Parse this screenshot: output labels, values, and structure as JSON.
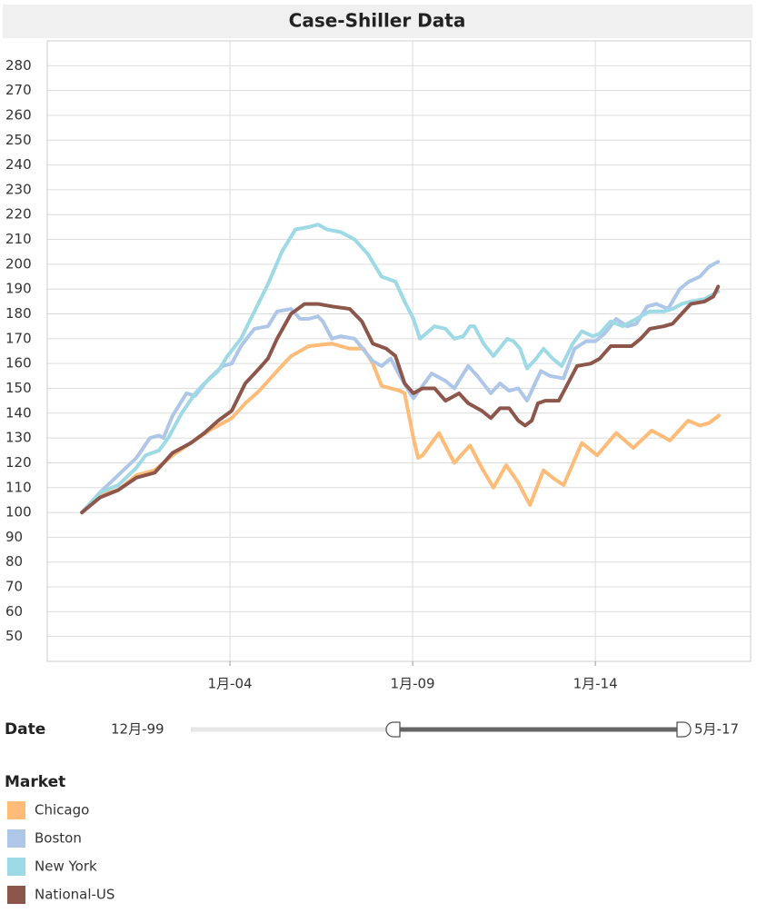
{
  "chart_data": {
    "type": "line",
    "title": "Case-Shiller Data",
    "grid": true,
    "xlim": [
      1999,
      2018.25
    ],
    "xticks": [
      {
        "value": 2004,
        "label": "1月-04"
      },
      {
        "value": 2009,
        "label": "1月-09"
      },
      {
        "value": 2014,
        "label": "1月-14"
      }
    ],
    "ylim": [
      40,
      290
    ],
    "yticks": [
      50,
      60,
      70,
      80,
      90,
      100,
      110,
      120,
      130,
      140,
      150,
      160,
      170,
      180,
      190,
      200,
      210,
      220,
      230,
      240,
      250,
      260,
      270,
      280
    ],
    "filter": {
      "label": "Date",
      "min_label": "12月-99",
      "max_label": "5月-17"
    },
    "legend": "bottom-left",
    "legend_title": "Market",
    "series": [
      {
        "name": "Chicago",
        "color": "#ffbb78",
        "x": [
          1999.95,
          2000.44,
          2000.94,
          2001.44,
          2001.94,
          2002.43,
          2002.93,
          2003.43,
          2004.05,
          2004.42,
          2004.8,
          2005.29,
          2005.67,
          2006.16,
          2006.79,
          2007.28,
          2007.66,
          2007.91,
          2008.15,
          2008.65,
          2008.78,
          2009.02,
          2009.15,
          2009.27,
          2009.72,
          2010.14,
          2010.57,
          2010.89,
          2011.21,
          2011.56,
          2011.89,
          2012.21,
          2012.58,
          2012.83,
          2013.13,
          2013.63,
          2014.05,
          2014.57,
          2015.04,
          2015.54,
          2016.04,
          2016.54,
          2016.86,
          2017.11,
          2017.38
        ],
        "values": [
          100,
          107,
          109,
          115,
          117,
          123,
          128,
          133,
          138,
          144,
          149,
          157,
          163,
          167,
          168,
          166,
          166,
          160,
          151,
          149,
          148,
          130,
          122,
          123,
          132,
          120,
          127,
          118,
          110,
          119,
          112,
          103,
          117,
          114,
          111,
          128,
          123,
          132,
          126,
          133,
          129,
          137,
          135,
          136,
          139
        ]
      },
      {
        "name": "Boston",
        "color": "#aec7e8",
        "x": [
          1999.95,
          2000.44,
          2000.94,
          2001.44,
          2001.81,
          2002.06,
          2002.18,
          2002.43,
          2002.81,
          2003.05,
          2003.43,
          2003.8,
          2004.05,
          2004.3,
          2004.67,
          2005.04,
          2005.29,
          2005.67,
          2005.92,
          2006.16,
          2006.41,
          2006.54,
          2006.79,
          2007.03,
          2007.41,
          2007.91,
          2008.15,
          2008.4,
          2008.65,
          2009.02,
          2009.27,
          2009.52,
          2009.9,
          2010.14,
          2010.52,
          2010.77,
          2011.14,
          2011.39,
          2011.64,
          2011.89,
          2012.13,
          2012.51,
          2012.76,
          2013.13,
          2013.43,
          2013.75,
          2014.0,
          2014.25,
          2014.57,
          2014.87,
          2015.12,
          2015.42,
          2015.67,
          2015.99,
          2016.31,
          2016.56,
          2016.86,
          2017.11,
          2017.36
        ],
        "values": [
          100,
          108,
          115,
          122,
          130,
          131,
          130,
          139,
          148,
          147,
          154,
          159,
          160,
          167,
          174,
          175,
          181,
          182,
          178,
          178,
          179,
          177,
          170,
          171,
          170,
          161,
          159,
          162,
          155,
          146,
          151,
          156,
          153,
          150,
          159,
          155,
          148,
          152,
          149,
          150,
          145,
          157,
          155,
          154,
          166,
          169,
          169,
          172,
          178,
          175,
          176,
          183,
          184,
          182,
          190,
          193,
          195,
          199,
          201
        ]
      },
      {
        "name": "New York",
        "color": "#9edae5",
        "x": [
          1999.95,
          2000.44,
          2000.94,
          2001.44,
          2001.69,
          2002.06,
          2002.31,
          2002.68,
          2003.05,
          2003.3,
          2003.68,
          2003.93,
          2004.3,
          2004.67,
          2005.04,
          2005.42,
          2005.79,
          2006.16,
          2006.41,
          2006.66,
          2007.03,
          2007.41,
          2007.78,
          2008.15,
          2008.53,
          2008.78,
          2009.02,
          2009.2,
          2009.6,
          2009.9,
          2010.14,
          2010.39,
          2010.57,
          2010.69,
          2010.94,
          2011.21,
          2011.59,
          2011.76,
          2011.94,
          2012.13,
          2012.38,
          2012.58,
          2012.83,
          2013.08,
          2013.38,
          2013.63,
          2013.93,
          2014.12,
          2014.42,
          2014.75,
          2015.12,
          2015.49,
          2015.87,
          2016.11,
          2016.36,
          2016.61,
          2016.99,
          2017.36
        ],
        "values": [
          100,
          108,
          111,
          118,
          123,
          125,
          130,
          140,
          148,
          152,
          157,
          163,
          170,
          181,
          192,
          205,
          214,
          215,
          216,
          214,
          213,
          210,
          204,
          195,
          193,
          185,
          178,
          170,
          175,
          174,
          170,
          171,
          175,
          175,
          168,
          163,
          170,
          169,
          166,
          158,
          162,
          166,
          162,
          159,
          168,
          173,
          171,
          172,
          177,
          175,
          178,
          181,
          181,
          182,
          184,
          185,
          186,
          189
        ]
      },
      {
        "name": "National-US",
        "color": "#8c564b",
        "x": [
          1999.95,
          2000.44,
          2000.94,
          2001.44,
          2001.94,
          2002.43,
          2002.93,
          2003.3,
          2003.68,
          2004.05,
          2004.42,
          2004.8,
          2005.04,
          2005.29,
          2005.67,
          2006.04,
          2006.41,
          2006.79,
          2007.28,
          2007.61,
          2007.91,
          2008.28,
          2008.53,
          2008.78,
          2009.02,
          2009.27,
          2009.6,
          2009.9,
          2010.27,
          2010.52,
          2010.89,
          2011.14,
          2011.39,
          2011.64,
          2011.89,
          2012.08,
          2012.26,
          2012.43,
          2012.63,
          2013.0,
          2013.25,
          2013.5,
          2013.88,
          2014.12,
          2014.42,
          2014.75,
          2014.99,
          2015.24,
          2015.49,
          2015.87,
          2016.11,
          2016.36,
          2016.61,
          2016.99,
          2017.23,
          2017.36
        ],
        "values": [
          100,
          106,
          109,
          114,
          116,
          124,
          128,
          132,
          137,
          141,
          152,
          158,
          162,
          170,
          180,
          184,
          184,
          183,
          182,
          177,
          168,
          166,
          163,
          152,
          148,
          150,
          150,
          145,
          148,
          144,
          141,
          138,
          142,
          142,
          137,
          135,
          137,
          144,
          145,
          145,
          152,
          159,
          160,
          162,
          167,
          167,
          167,
          170,
          174,
          175,
          176,
          180,
          184,
          185,
          187,
          191
        ]
      }
    ]
  }
}
